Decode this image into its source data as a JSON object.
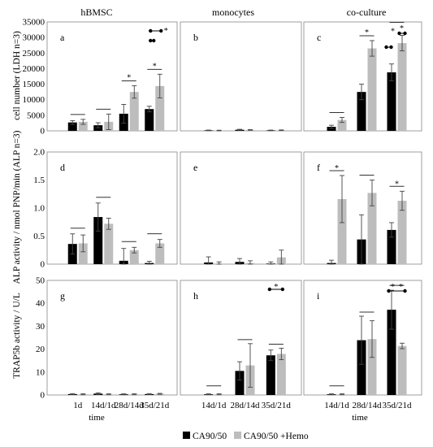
{
  "colors": {
    "ca": "#000000",
    "hemo": "#bdbdbd",
    "sig_marker": "#7a7a7a",
    "err": "#444444"
  },
  "headings": [
    "hBMSC",
    "monocytes",
    "co-culture"
  ],
  "row_labels": [
    "cell number (LDH n=3)",
    "ALP activity / nmol PNP/min (ALP n=3)",
    "TRAP5b activity / U/L"
  ],
  "x_title": "time",
  "legend": [
    "CA90/50",
    "CA90/50 +Hemo"
  ],
  "chart_data": [
    {
      "type": "bar",
      "panel": "a",
      "column": "hBMSC",
      "categories": [
        "1d",
        "14d/1d",
        "28d/14d",
        "35d/21d"
      ],
      "ylim": [
        0,
        35000
      ],
      "yticks": [
        0,
        5000,
        10000,
        15000,
        20000,
        25000,
        30000,
        35000
      ],
      "series": [
        {
          "name": "CA90/50",
          "values": [
            2700,
            1800,
            5500,
            7000
          ],
          "errors": [
            600,
            800,
            3000,
            900
          ]
        },
        {
          "name": "CA90/50 +Hemo",
          "values": [
            2900,
            2900,
            12500,
            14400
          ],
          "errors": [
            800,
            2500,
            2000,
            3800
          ]
        }
      ],
      "annotations": [
        "n.s. 1d",
        "n.s. 14d/1d",
        "* 28d/14d",
        "* 35d/21d",
        "* 35d/21d vs 28d/14d"
      ]
    },
    {
      "type": "bar",
      "panel": "b",
      "column": "monocytes",
      "categories": [
        "14d/1d",
        "28d/14d",
        "35d/21d"
      ],
      "ylim": [
        0,
        35000
      ],
      "series": [
        {
          "name": "CA90/50",
          "values": [
            150,
            350,
            150
          ],
          "errors": [
            100,
            150,
            100
          ]
        },
        {
          "name": "CA90/50 +Hemo",
          "values": [
            100,
            300,
            200
          ],
          "errors": [
            100,
            100,
            100
          ]
        }
      ]
    },
    {
      "type": "bar",
      "panel": "c",
      "column": "co-culture",
      "categories": [
        "14d/1d",
        "28d/14d",
        "35d/21d"
      ],
      "ylim": [
        0,
        35000
      ],
      "series": [
        {
          "name": "CA90/50",
          "values": [
            1300,
            12500,
            18800
          ],
          "errors": [
            500,
            2500,
            2700
          ]
        },
        {
          "name": "CA90/50 +Hemo",
          "values": [
            3500,
            26500,
            28200
          ],
          "errors": [
            800,
            2500,
            2500
          ]
        }
      ],
      "annotations": [
        "n.s. 14d/1d",
        "* 28d/14d",
        "* 35d/21d",
        "* 35d/21d vs 28d/14d (CA90/50)",
        "* 35d/21d vs 28d/14d (+Hemo)"
      ]
    },
    {
      "type": "bar",
      "panel": "d",
      "column": "hBMSC",
      "categories": [
        "1d",
        "14d/1d",
        "28d/14d",
        "35d/21d"
      ],
      "ylim": [
        0,
        2.0
      ],
      "yticks": [
        0,
        0.5,
        1.0,
        1.5,
        2.0
      ],
      "series": [
        {
          "name": "CA90/50",
          "values": [
            0.36,
            0.84,
            0.06,
            0.02
          ],
          "errors": [
            0.18,
            0.25,
            0.22,
            0.03
          ]
        },
        {
          "name": "CA90/50 +Hemo",
          "values": [
            0.37,
            0.72,
            0.25,
            0.37
          ],
          "errors": [
            0.15,
            0.1,
            0.05,
            0.07
          ]
        }
      ],
      "annotations": [
        "n.s. 1d",
        "n.s. 14d/1d",
        "n.s. 28d/14d",
        "n.s. 35d/21d"
      ]
    },
    {
      "type": "bar",
      "panel": "e",
      "column": "monocytes",
      "categories": [
        "14d/1d",
        "28d/14d",
        "35d/21d"
      ],
      "ylim": [
        0,
        2.0
      ],
      "series": [
        {
          "name": "CA90/50",
          "values": [
            0.03,
            0.04,
            0.01
          ],
          "errors": [
            0.1,
            0.06,
            0.03
          ]
        },
        {
          "name": "CA90/50 +Hemo",
          "values": [
            0.01,
            0.02,
            0.12
          ],
          "errors": [
            0.03,
            0.04,
            0.13
          ]
        }
      ]
    },
    {
      "type": "bar",
      "panel": "f",
      "column": "co-culture",
      "categories": [
        "14d/1d",
        "28d/14d",
        "35d/21d"
      ],
      "ylim": [
        0,
        2.0
      ],
      "series": [
        {
          "name": "CA90/50",
          "values": [
            0.02,
            0.44,
            0.61
          ],
          "errors": [
            0.05,
            0.44,
            0.13
          ]
        },
        {
          "name": "CA90/50 +Hemo",
          "values": [
            1.16,
            1.27,
            1.13
          ],
          "errors": [
            0.42,
            0.23,
            0.17
          ]
        }
      ],
      "annotations": [
        "* 14d/1d",
        "n.s. 28d/14d",
        "* 35d/21d"
      ]
    },
    {
      "type": "bar",
      "panel": "g",
      "column": "hBMSC",
      "categories": [
        "1d",
        "14d/1d",
        "28d/14d",
        "35d/21d"
      ],
      "ylim": [
        0,
        50
      ],
      "yticks": [
        0,
        10,
        20,
        30,
        40,
        50
      ],
      "series": [
        {
          "name": "CA90/50",
          "values": [
            0.4,
            0.6,
            0.3,
            0.4
          ],
          "errors": [
            0.2,
            0.3,
            0.2,
            0.2
          ]
        },
        {
          "name": "CA90/50 +Hemo",
          "values": [
            0.3,
            0.3,
            0.3,
            0.5
          ],
          "errors": [
            0.2,
            0.2,
            0.2,
            0.2
          ]
        }
      ]
    },
    {
      "type": "bar",
      "panel": "h",
      "column": "monocytes",
      "categories": [
        "14d/1d",
        "28d/14d",
        "35d/21d"
      ],
      "ylim": [
        0,
        50
      ],
      "series": [
        {
          "name": "CA90/50",
          "values": [
            0.3,
            10.5,
            17.3
          ],
          "errors": [
            0.2,
            4.0,
            2.3
          ]
        },
        {
          "name": "CA90/50 +Hemo",
          "values": [
            0.3,
            12.9,
            17.9
          ],
          "errors": [
            0.2,
            9.5,
            2.5
          ]
        }
      ],
      "annotations": [
        "n.s. 14d/1d",
        "n.s. 28d/14d",
        "n.s. 35d/21d",
        "* 35d/21d vs 28d/14d"
      ]
    },
    {
      "type": "bar",
      "panel": "i",
      "column": "co-culture",
      "categories": [
        "14d/1d",
        "28d/14d",
        "35d/21d"
      ],
      "ylim": [
        0,
        50
      ],
      "series": [
        {
          "name": "CA90/50",
          "values": [
            0.3,
            23.9,
            37.2
          ],
          "errors": [
            0.2,
            10.5,
            8.5
          ]
        },
        {
          "name": "CA90/50 +Hemo",
          "values": [
            0.3,
            24.4,
            21.4
          ],
          "errors": [
            0.2,
            8.0,
            1.2
          ]
        }
      ],
      "annotations": [
        "n.s. 14d/1d",
        "n.s. 28d/14d",
        "* 35d/21d",
        "* 35d/21d vs 28d/14d"
      ]
    }
  ]
}
